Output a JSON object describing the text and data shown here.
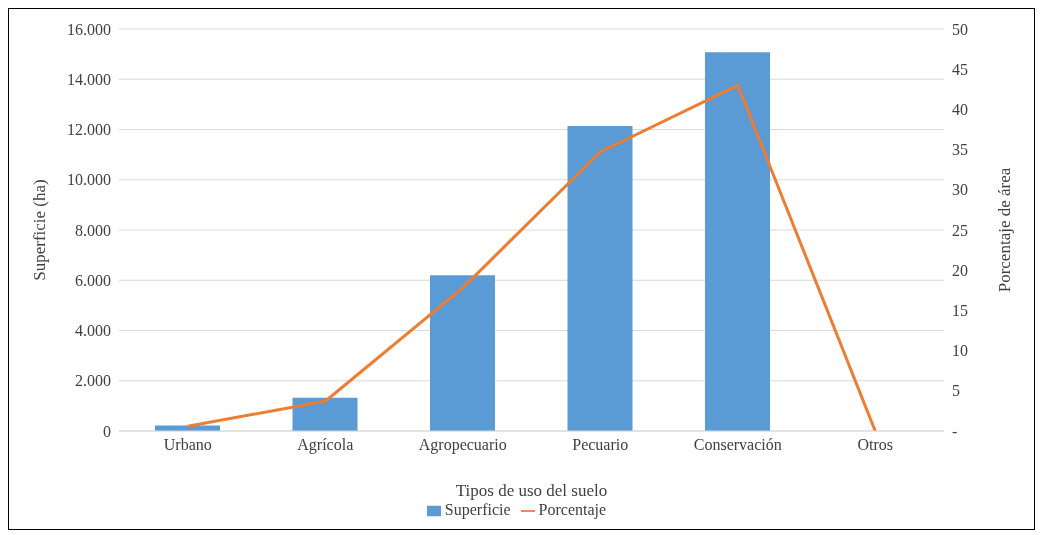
{
  "chart_data": {
    "type": "bar",
    "xlabel": "Tipos de uso del suelo",
    "ylabel": "Superficie (ha)",
    "y2label": "Porcentaje de área",
    "categories": [
      "Urbano",
      "Agrícola",
      "Agropecuario",
      "Pecuario",
      "Conservación",
      "Otros"
    ],
    "series": [
      {
        "name": "Superficie",
        "color": "#5b9bd5",
        "values": [
          220,
          1320,
          6200,
          12140,
          15070,
          null
        ]
      },
      {
        "name": "Porcentaje",
        "type": "line",
        "axis": "y2",
        "color": "#ed7d31",
        "values": [
          0.6,
          3.7,
          17.8,
          34.7,
          43.0,
          0
        ]
      }
    ],
    "ylim": [
      0,
      16000
    ],
    "yticks": [
      {
        "value": 0,
        "label": "0"
      },
      {
        "value": 2000,
        "label": "2.000"
      },
      {
        "value": 4000,
        "label": "4.000"
      },
      {
        "value": 6000,
        "label": "6.000"
      },
      {
        "value": 8000,
        "label": "8.000"
      },
      {
        "value": 10000,
        "label": "10.000"
      },
      {
        "value": 12000,
        "label": "12.000"
      },
      {
        "value": 14000,
        "label": "14.000"
      },
      {
        "value": 16000,
        "label": "16.000"
      }
    ],
    "y2lim": [
      0,
      50
    ],
    "y2ticks": [
      {
        "value": 0,
        "label": "-"
      },
      5,
      10,
      15,
      20,
      25,
      30,
      35,
      40,
      45,
      50
    ],
    "grid": "y",
    "legend": "bottom",
    "marker": "none",
    "line_style": "solid"
  }
}
